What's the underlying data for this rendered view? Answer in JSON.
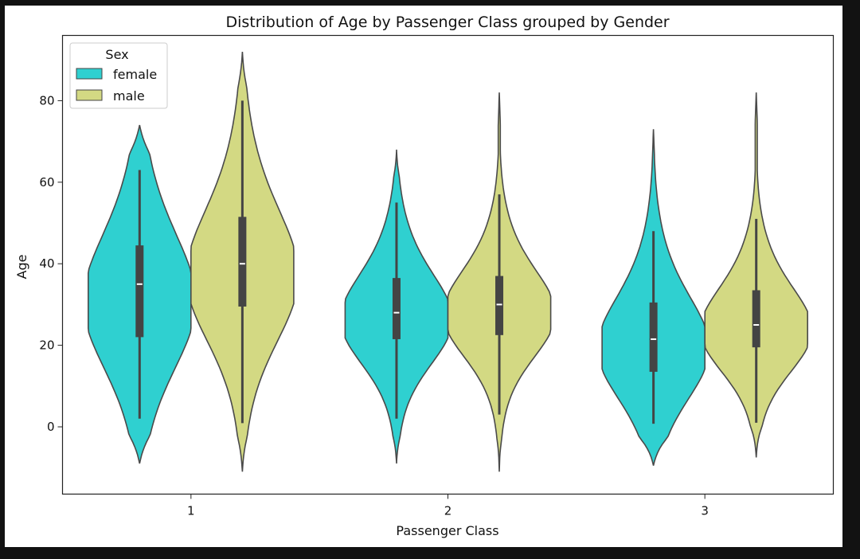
{
  "chart_data": {
    "type": "violin",
    "title": "Distribution of Age by Passenger Class grouped by Gender",
    "xlabel": "Passenger Class",
    "ylabel": "Age",
    "categories": [
      "1",
      "2",
      "3"
    ],
    "ylim": [
      -16.5,
      96
    ],
    "yticks": [
      0,
      20,
      40,
      60,
      80
    ],
    "legend": {
      "title": "Sex",
      "position": "top-left"
    },
    "series": [
      {
        "name": "female",
        "color": "#2fd0d0",
        "stats": [
          {
            "min": 2,
            "q1": 22,
            "median": 35,
            "q3": 44.5,
            "max": 63,
            "kde_min": -9,
            "kde_max": 74
          },
          {
            "min": 2,
            "q1": 21.5,
            "median": 28,
            "q3": 36.5,
            "max": 55,
            "kde_min": -9,
            "kde_max": 68
          },
          {
            "min": 0.75,
            "q1": 13.5,
            "median": 21.5,
            "q3": 30.5,
            "max": 48,
            "kde_min": -9.5,
            "kde_max": 73
          }
        ]
      },
      {
        "name": "male",
        "color": "#d3d983",
        "stats": [
          {
            "min": 0.9,
            "q1": 29.5,
            "median": 40,
            "q3": 51.5,
            "max": 80,
            "kde_min": -11,
            "kde_max": 92
          },
          {
            "min": 3,
            "q1": 22.5,
            "median": 30,
            "q3": 37,
            "max": 57,
            "kde_min": -11,
            "kde_max": 82
          },
          {
            "min": 1,
            "q1": 19.5,
            "median": 25,
            "q3": 33.5,
            "max": 51,
            "kde_min": -7.5,
            "kde_max": 82
          }
        ]
      }
    ]
  }
}
